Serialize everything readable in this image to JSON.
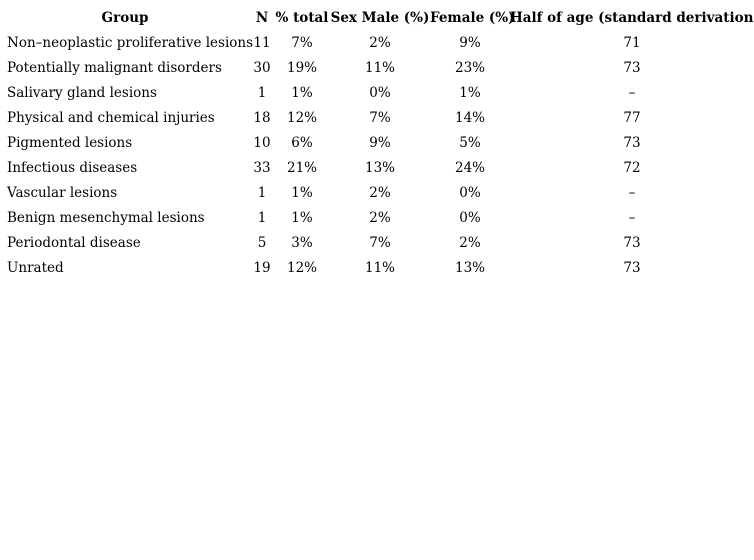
{
  "table": {
    "columns": [
      "Group",
      "N",
      "% total",
      "Sex Male (%)",
      "Female (%)",
      "Half of age (standard derivation)"
    ],
    "column_keys": [
      "group",
      "n",
      "pct-total",
      "sex-male-pct",
      "female-pct",
      "age-mean"
    ],
    "rows": [
      [
        "Non–neoplastic proliferative lesions",
        "11",
        "7%",
        "2%",
        "9%",
        "71"
      ],
      [
        "Potentially malignant disorders",
        "30",
        "19%",
        "11%",
        "23%",
        "73"
      ],
      [
        "Salivary gland lesions",
        "1",
        "1%",
        "0%",
        "1%",
        "–"
      ],
      [
        "Physical and chemical injuries",
        "18",
        "12%",
        "7%",
        "14%",
        "77"
      ],
      [
        "Pigmented lesions",
        "10",
        "6%",
        "9%",
        "5%",
        "73"
      ],
      [
        "Infectious diseases",
        "33",
        "21%",
        "13%",
        "24%",
        "72"
      ],
      [
        "Vascular lesions",
        "1",
        "1%",
        "2%",
        "0%",
        "–"
      ],
      [
        "Benign mesenchymal lesions",
        "1",
        "1%",
        "2%",
        "0%",
        "–"
      ],
      [
        "Periodontal disease",
        "5",
        "3%",
        "7%",
        "2%",
        "73"
      ],
      [
        "Unrated",
        "19",
        "12%",
        "11%",
        "13%",
        "73"
      ]
    ],
    "text_color": "#000000",
    "background_color": "#ffffff"
  }
}
